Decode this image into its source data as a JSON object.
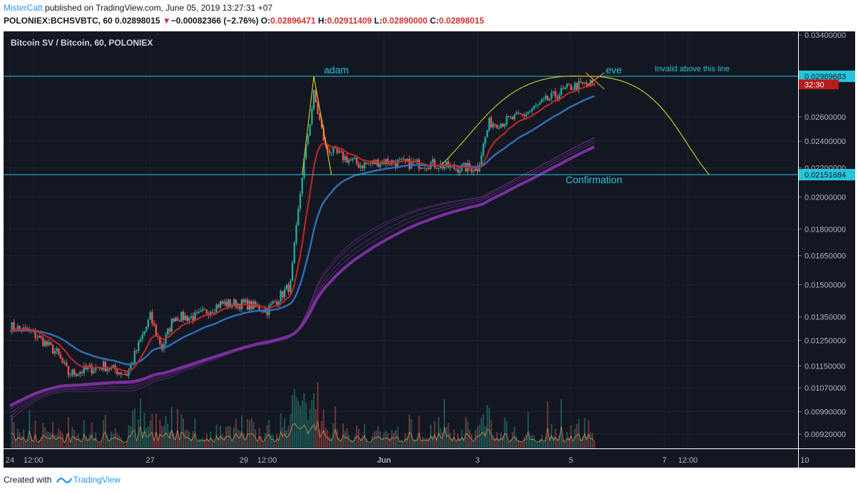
{
  "header": {
    "author": "MisterCatt",
    "published_text": " published on TradingView.com, June 05, 2019 13:27:31 +07",
    "symbol": "POLONIEX:BCHSVBTC, 60",
    "last": "0.02898015",
    "change": "−0.00082366 (−2.76%)",
    "ohlc": {
      "o_label": "O:",
      "o": "0.02896471",
      "h_label": "H:",
      "h": "0.02911409",
      "l_label": "L:",
      "l": "0.02890000",
      "c_label": "C:",
      "c": "0.02898015"
    }
  },
  "footer": {
    "created_with": "Created with",
    "brand": "TradingView"
  },
  "colors": {
    "background": "#131722",
    "up": "#26a69a",
    "down": "#ef5350",
    "ema_fast": "#c62828",
    "ema_slow": "#2f6db8",
    "ribbon": "#7b2f9e",
    "level_line": "#26c6da",
    "pattern": "#c8c81e"
  },
  "chart_data": {
    "type": "candlestick",
    "title": "Bitcoin SV / Bitcoin, 60, POLONIEX",
    "y_scale": "log",
    "ylim": [
      0.0086,
      0.0345
    ],
    "y_ticks": [
      "0.03400000",
      "0.02600000",
      "0.02400000",
      "0.02200000",
      "0.02000000",
      "0.01800000",
      "0.01650000",
      "0.01500000",
      "0.01350000",
      "0.01250000",
      "0.01150000",
      "0.01070000",
      "0.00990000",
      "0.00920000"
    ],
    "x_ticks": [
      "24",
      "12:00",
      "27",
      "29",
      "12:00",
      "Jun",
      "3",
      "5",
      "7",
      "12:00",
      "10"
    ],
    "price_path": [
      [
        "24 00:00",
        0.0131
      ],
      [
        "24 12:00",
        0.0128
      ],
      [
        "25 00:00",
        0.012
      ],
      [
        "25 06:00",
        0.0112
      ],
      [
        "26 00:00",
        0.0115
      ],
      [
        "26 12:00",
        0.0112
      ],
      [
        "27 00:00",
        0.0135
      ],
      [
        "27 06:00",
        0.0122
      ],
      [
        "27 12:00",
        0.0135
      ],
      [
        "28 00:00",
        0.0135
      ],
      [
        "28 12:00",
        0.0141
      ],
      [
        "29 00:00",
        0.0141
      ],
      [
        "29 12:00",
        0.0138
      ],
      [
        "30 00:00",
        0.015
      ],
      [
        "30 06:00",
        0.0215
      ],
      [
        "30 12:00",
        0.028
      ],
      [
        "30 18:00",
        0.0235
      ],
      [
        "31 00:00",
        0.023
      ],
      [
        "31 12:00",
        0.0222
      ],
      [
        "1 00:00",
        0.0225
      ],
      [
        "1 12:00",
        0.0223
      ],
      [
        "2 00:00",
        0.0223
      ],
      [
        "2 12:00",
        0.022
      ],
      [
        "3 00:00",
        0.022
      ],
      [
        "3 06:00",
        0.0255
      ],
      [
        "3 12:00",
        0.0255
      ],
      [
        "4 00:00",
        0.0262
      ],
      [
        "4 12:00",
        0.0275
      ],
      [
        "5 00:00",
        0.0287
      ],
      [
        "5 12:00",
        0.029
      ]
    ],
    "series": [
      {
        "name": "EMA fast",
        "color": "#c62828"
      },
      {
        "name": "EMA slow",
        "color": "#2f6db8"
      },
      {
        "name": "EMA ribbon",
        "color": "#7b2f9e"
      }
    ],
    "levels": [
      {
        "label": "0.02969683",
        "value": 0.02969683,
        "note": "Invalid above this line"
      },
      {
        "label": "0.02151684",
        "value": 0.02151684,
        "note": "Confirmation"
      }
    ],
    "annotations": [
      "adam",
      "eve",
      "Invalid above this line",
      "Confirmation"
    ],
    "price_tag": {
      "label": "0.02898015",
      "timer": "32:30"
    },
    "volume": true,
    "grid": true
  }
}
